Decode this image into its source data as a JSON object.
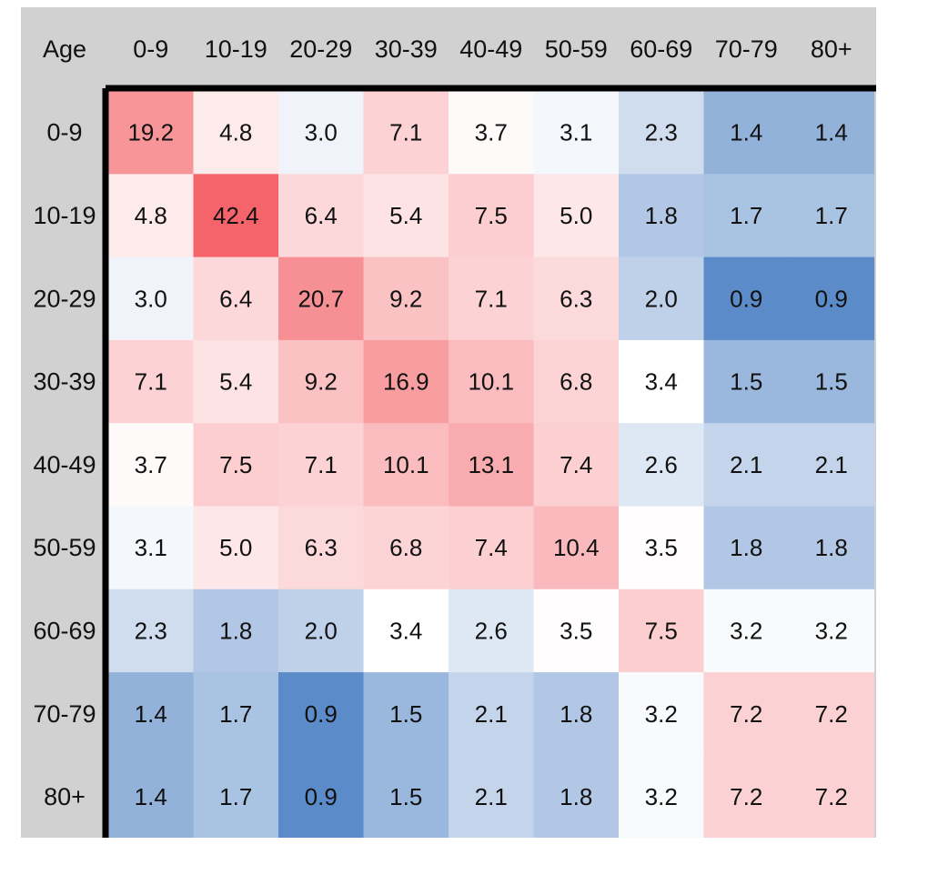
{
  "chart_data": {
    "type": "heatmap",
    "corner_label": "Age",
    "x_categories": [
      "0-9",
      "10-19",
      "20-29",
      "30-39",
      "40-49",
      "50-59",
      "60-69",
      "70-79",
      "80+"
    ],
    "y_categories": [
      "0-9",
      "10-19",
      "20-29",
      "30-39",
      "40-49",
      "50-59",
      "60-69",
      "70-79",
      "80+"
    ],
    "values": [
      [
        "19.2",
        "4.8",
        "3.0",
        "7.1",
        "3.7",
        "3.1",
        "2.3",
        "1.4",
        "1.4"
      ],
      [
        "4.8",
        "42.4",
        "6.4",
        "5.4",
        "7.5",
        "5.0",
        "1.8",
        "1.7",
        "1.7"
      ],
      [
        "3.0",
        "6.4",
        "20.7",
        "9.2",
        "7.1",
        "6.3",
        "2.0",
        "0.9",
        "0.9"
      ],
      [
        "7.1",
        "5.4",
        "9.2",
        "16.9",
        "10.1",
        "6.8",
        "3.4",
        "1.5",
        "1.5"
      ],
      [
        "3.7",
        "7.5",
        "7.1",
        "10.1",
        "13.1",
        "7.4",
        "2.6",
        "2.1",
        "2.1"
      ],
      [
        "3.1",
        "5.0",
        "6.3",
        "6.8",
        "7.4",
        "10.4",
        "3.5",
        "1.8",
        "1.8"
      ],
      [
        "2.3",
        "1.8",
        "2.0",
        "3.4",
        "2.6",
        "3.5",
        "7.5",
        "3.2",
        "3.2"
      ],
      [
        "1.4",
        "1.7",
        "0.9",
        "1.5",
        "2.1",
        "1.8",
        "3.2",
        "7.2",
        "7.2"
      ],
      [
        "1.4",
        "1.7",
        "0.9",
        "1.5",
        "2.1",
        "1.8",
        "3.2",
        "7.2",
        "7.2"
      ]
    ],
    "color_scale": {
      "low": "#5b8bc8",
      "mid": "#ffffff",
      "high": "#f4646a"
    },
    "grid": false,
    "legend": "none"
  }
}
